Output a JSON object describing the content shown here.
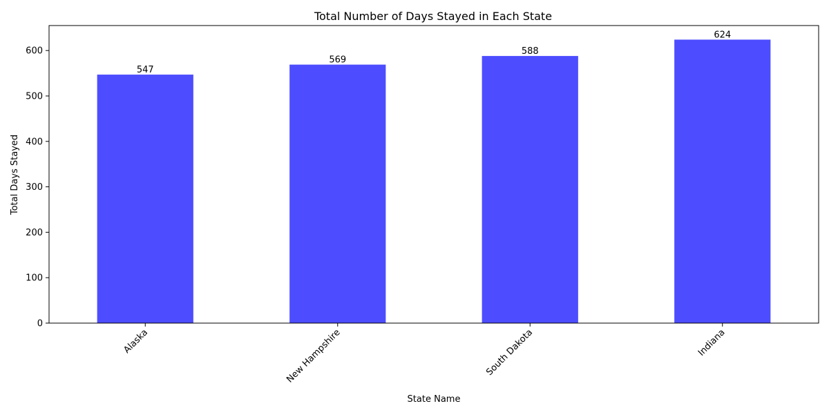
{
  "chart_data": {
    "type": "bar",
    "title": "Total Number of Days Stayed in Each State",
    "xlabel": "State Name",
    "ylabel": "Total Days Stayed",
    "categories": [
      "Alaska",
      "New Hampshire",
      "South Dakota",
      "Indiana"
    ],
    "values": [
      547,
      569,
      588,
      624
    ],
    "ylim": [
      0,
      655
    ],
    "yticks": [
      0,
      100,
      200,
      300,
      400,
      500,
      600
    ],
    "bar_color": "#4d4dff",
    "grid": false,
    "legend": "none"
  }
}
